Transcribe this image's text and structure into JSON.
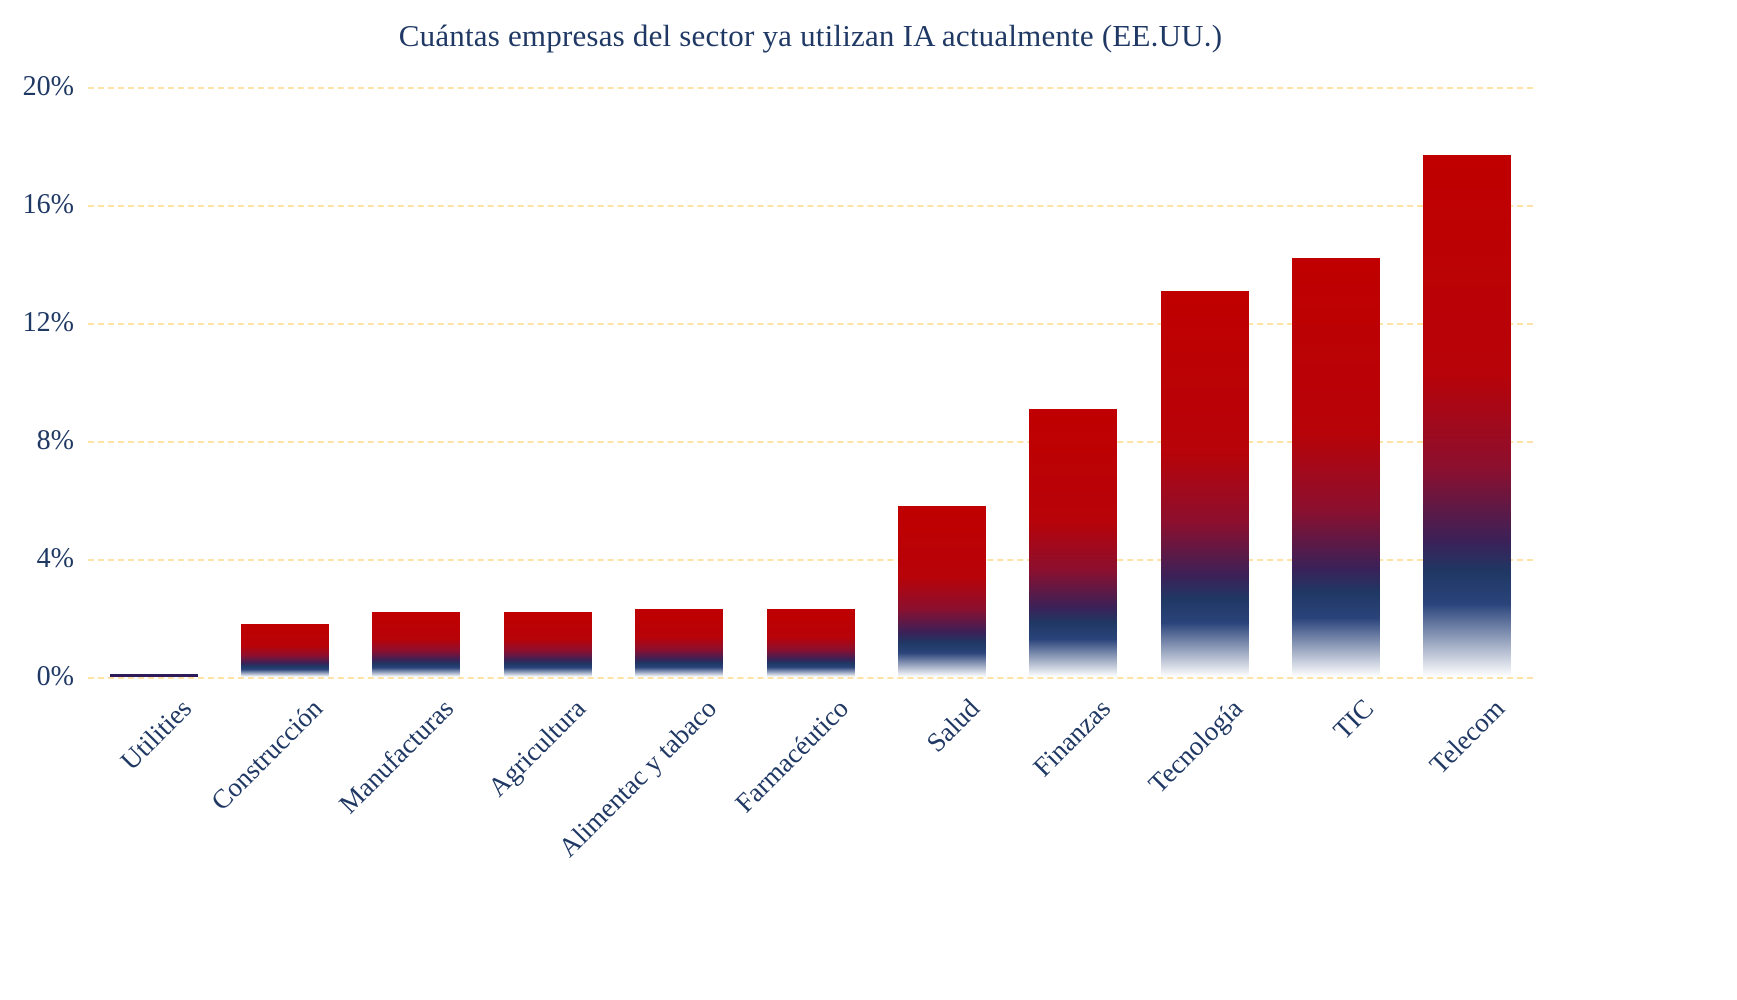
{
  "chart_data": {
    "type": "bar",
    "title": "Cuántas empresas del sector ya utilizan IA actualmente (EE.UU.)",
    "categories": [
      "Utilities",
      "Construcción",
      "Manufacturas",
      "Agricultura",
      "Alimentac y tabaco",
      "Farmacéutico",
      "Salud",
      "Finanzas",
      "Tecnología",
      "TIC",
      "Telecom"
    ],
    "values": [
      0.1,
      1.8,
      2.2,
      2.2,
      2.3,
      2.3,
      5.8,
      9.1,
      13.1,
      14.2,
      17.7
    ],
    "xlabel": "",
    "ylabel": "",
    "ylim": [
      0,
      20
    ],
    "yticks": [
      0,
      4,
      8,
      12,
      16,
      20
    ],
    "ytick_labels": [
      "0%",
      "4%",
      "8%",
      "12%",
      "16%",
      "20%"
    ],
    "grid": "horizontal dashed",
    "gridline_color": "#ffe2a6",
    "legend": "none",
    "colors": {
      "bar_top": "#c00000",
      "bar_bottom": "#1f3864",
      "bar_fade": "#ffffff",
      "text": "#1f3864"
    }
  }
}
